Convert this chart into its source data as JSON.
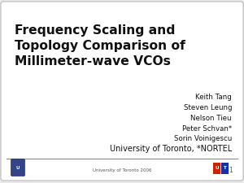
{
  "title_line1": "Frequency Scaling and",
  "title_line2": "Topology Comparison of",
  "title_line3": "Millimeter-wave VCOs",
  "authors": [
    "Keith Tang",
    "Steven Leung",
    "Nelson Tieu",
    "Peter Schvan*",
    "Sorin Voinigescu"
  ],
  "affiliation": "University of Toronto, *NORTEL",
  "footer_text": "University of Toronto 2006",
  "page_number": "1",
  "background_color": "#e8e8e8",
  "slide_bg": "#ffffff",
  "title_color": "#111111",
  "author_color": "#111111",
  "affil_color": "#111111",
  "footer_color": "#555555",
  "line_color": "#888888",
  "nortel_red": "#cc2200",
  "nortel_blue": "#1133aa",
  "uoft_blue": "#334488"
}
